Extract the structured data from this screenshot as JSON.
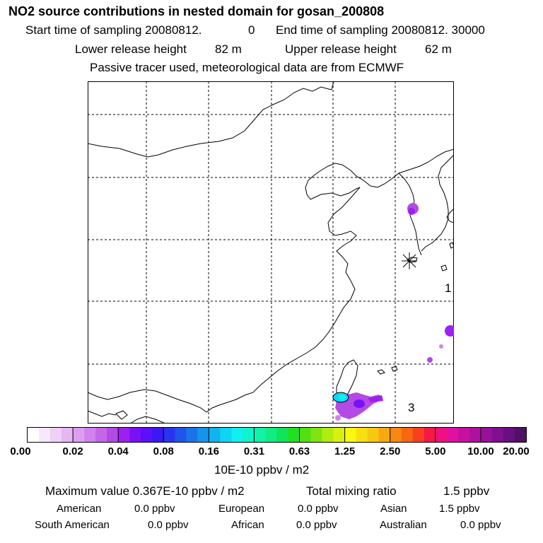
{
  "header": {
    "title": "NO2 source contributions in nested domain for gosan_200808",
    "start_label": "Start time of sampling 20080812.",
    "start_value": "0",
    "end_label": "End time of sampling 20080812. 30000",
    "lower_label": "Lower release height",
    "lower_value": "82 m",
    "upper_label": "Upper release height",
    "upper_value": "62 m",
    "note": "Passive tracer used, meteorological data are from ECMWF"
  },
  "map": {
    "labels": [
      "1",
      "3"
    ]
  },
  "chart_data": {
    "type": "heatmap",
    "title": "NO2 source contributions in nested domain for gosan_200808",
    "colorbar": {
      "ticks": [
        "0.00",
        "0.02",
        "0.04",
        "0.08",
        "0.16",
        "0.31",
        "0.63",
        "1.25",
        "2.50",
        "5.00",
        "10.00",
        "20.00"
      ],
      "unit": "10E-10 ppbv / m2",
      "colors": [
        "#ffffff",
        "#f7e8fb",
        "#efd0f7",
        "#e6b7f3",
        "#dc9ff0",
        "#d183ec",
        "#c466e8",
        "#b44ae6",
        "#9c20f0",
        "#7a10f6",
        "#5a10f8",
        "#3c18f4",
        "#2a34ee",
        "#1f55ea",
        "#1a74e8",
        "#1494ea",
        "#10b4f0",
        "#10d4f4",
        "#10f0f0",
        "#10f4cc",
        "#10f4a8",
        "#10ec80",
        "#10e45a",
        "#20e020",
        "#50e010",
        "#80e410",
        "#b0ec10",
        "#d8f010",
        "#f8f810",
        "#f8e010",
        "#f8c810",
        "#f8a810",
        "#f88810",
        "#f86810",
        "#f84020",
        "#f81848",
        "#f01080",
        "#e010a0",
        "#c810a0",
        "#b010a0",
        "#98109c",
        "#801090",
        "#681080",
        "#501064"
      ]
    },
    "max_value_label": "Maximum value  0.367E-10 ppbv / m2",
    "total_label": "Total mixing ratio",
    "total_value": "1.5 ppbv",
    "regions": [
      {
        "name": "American",
        "value": "0.0 ppbv"
      },
      {
        "name": "European",
        "value": "0.0 ppbv"
      },
      {
        "name": "Asian",
        "value": "1.5 ppbv"
      },
      {
        "name": "South American",
        "value": "0.0 ppbv"
      },
      {
        "name": "African",
        "value": "0.0 ppbv"
      },
      {
        "name": "Australian",
        "value": "0.0 ppbv"
      }
    ]
  }
}
